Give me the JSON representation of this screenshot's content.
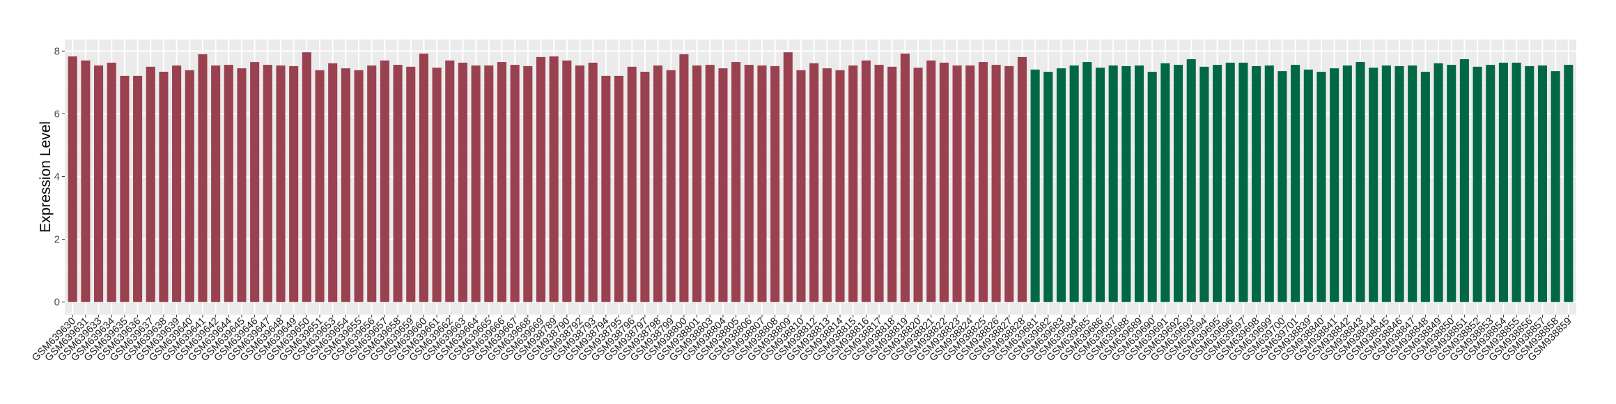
{
  "chart_data": {
    "type": "bar",
    "title": "",
    "xlabel": "",
    "ylabel": "Expression Level",
    "ylim": [
      -0.3,
      8.3
    ],
    "yticks": [
      0,
      2,
      4,
      6,
      8
    ],
    "grid": true,
    "legend": "none",
    "colors": {
      "group1": "#9a4150",
      "group2": "#016846"
    },
    "categories": [
      "GSM639630",
      "GSM639631",
      "GSM639633",
      "GSM639634",
      "GSM639635",
      "GSM639636",
      "GSM639637",
      "GSM639638",
      "GSM639639",
      "GSM639640",
      "GSM639641",
      "GSM639642",
      "GSM639644",
      "GSM639645",
      "GSM639646",
      "GSM639647",
      "GSM639648",
      "GSM639649",
      "GSM639650",
      "GSM639651",
      "GSM639653",
      "GSM639654",
      "GSM639655",
      "GSM639656",
      "GSM639657",
      "GSM639658",
      "GSM639659",
      "GSM639660",
      "GSM639661",
      "GSM639662",
      "GSM639663",
      "GSM639664",
      "GSM639665",
      "GSM639666",
      "GSM639667",
      "GSM639668",
      "GSM639669",
      "GSM938789",
      "GSM938790",
      "GSM938792",
      "GSM938793",
      "GSM938794",
      "GSM938795",
      "GSM938796",
      "GSM938797",
      "GSM938798",
      "GSM938799",
      "GSM938800",
      "GSM938801",
      "GSM938803",
      "GSM938804",
      "GSM938805",
      "GSM938806",
      "GSM938807",
      "GSM938808",
      "GSM938809",
      "GSM938810",
      "GSM938812",
      "GSM938813",
      "GSM938814",
      "GSM938815",
      "GSM938816",
      "GSM938817",
      "GSM938818",
      "GSM938819",
      "GSM938820",
      "GSM938821",
      "GSM938822",
      "GSM938823",
      "GSM938824",
      "GSM938825",
      "GSM938826",
      "GSM938827",
      "GSM938828",
      "GSM639681",
      "GSM639682",
      "GSM639683",
      "GSM639684",
      "GSM639685",
      "GSM639686",
      "GSM639687",
      "GSM639688",
      "GSM639689",
      "GSM639690",
      "GSM639691",
      "GSM639692",
      "GSM639693",
      "GSM639694",
      "GSM639695",
      "GSM639696",
      "GSM639697",
      "GSM639698",
      "GSM639699",
      "GSM639700",
      "GSM639701",
      "GSM938839",
      "GSM938840",
      "GSM938841",
      "GSM938842",
      "GSM938843",
      "GSM938844",
      "GSM938845",
      "GSM938846",
      "GSM938847",
      "GSM938848",
      "GSM938849",
      "GSM938850",
      "GSM938851",
      "GSM938852",
      "GSM938853",
      "GSM938854",
      "GSM938855",
      "GSM938856",
      "GSM938857",
      "GSM938858",
      "GSM938859"
    ],
    "values": [
      7.83,
      7.7,
      7.54,
      7.63,
      7.21,
      7.21,
      7.5,
      7.34,
      7.54,
      7.39,
      7.9,
      7.54,
      7.56,
      7.45,
      7.65,
      7.56,
      7.54,
      7.52,
      7.96,
      7.39,
      7.61,
      7.45,
      7.39,
      7.54,
      7.7,
      7.56,
      7.5,
      7.92,
      7.47,
      7.7,
      7.63,
      7.54,
      7.54,
      7.65,
      7.56,
      7.52,
      7.81,
      7.83,
      7.7,
      7.54,
      7.63,
      7.21,
      7.21,
      7.5,
      7.34,
      7.54,
      7.39,
      7.9,
      7.54,
      7.56,
      7.45,
      7.65,
      7.56,
      7.54,
      7.52,
      7.96,
      7.39,
      7.61,
      7.45,
      7.39,
      7.54,
      7.7,
      7.56,
      7.5,
      7.92,
      7.47,
      7.7,
      7.63,
      7.54,
      7.54,
      7.65,
      7.56,
      7.52,
      7.81,
      7.41,
      7.34,
      7.45,
      7.54,
      7.65,
      7.47,
      7.54,
      7.52,
      7.54,
      7.34,
      7.61,
      7.56,
      7.74,
      7.5,
      7.56,
      7.63,
      7.63,
      7.52,
      7.54,
      7.36,
      7.56,
      7.41,
      7.34,
      7.45,
      7.54,
      7.65,
      7.47,
      7.54,
      7.52,
      7.54,
      7.34,
      7.61,
      7.56,
      7.74,
      7.5,
      7.56,
      7.63,
      7.63,
      7.52,
      7.54,
      7.36,
      7.56
    ],
    "groups": [
      "group1",
      "group1",
      "group1",
      "group1",
      "group1",
      "group1",
      "group1",
      "group1",
      "group1",
      "group1",
      "group1",
      "group1",
      "group1",
      "group1",
      "group1",
      "group1",
      "group1",
      "group1",
      "group1",
      "group1",
      "group1",
      "group1",
      "group1",
      "group1",
      "group1",
      "group1",
      "group1",
      "group1",
      "group1",
      "group1",
      "group1",
      "group1",
      "group1",
      "group1",
      "group1",
      "group1",
      "group1",
      "group1",
      "group1",
      "group1",
      "group1",
      "group1",
      "group1",
      "group1",
      "group1",
      "group1",
      "group1",
      "group1",
      "group1",
      "group1",
      "group1",
      "group1",
      "group1",
      "group1",
      "group1",
      "group1",
      "group1",
      "group1",
      "group1",
      "group1",
      "group1",
      "group1",
      "group1",
      "group1",
      "group1",
      "group1",
      "group1",
      "group1",
      "group1",
      "group1",
      "group1",
      "group1",
      "group1",
      "group1",
      "group2",
      "group2",
      "group2",
      "group2",
      "group2",
      "group2",
      "group2",
      "group2",
      "group2",
      "group2",
      "group2",
      "group2",
      "group2",
      "group2",
      "group2",
      "group2",
      "group2",
      "group2",
      "group2",
      "group2",
      "group2",
      "group2",
      "group2",
      "group2",
      "group2",
      "group2",
      "group2",
      "group2",
      "group2",
      "group2",
      "group2",
      "group2",
      "group2",
      "group2",
      "group2",
      "group2",
      "group2",
      "group2",
      "group2",
      "group2",
      "group2",
      "group2"
    ]
  }
}
